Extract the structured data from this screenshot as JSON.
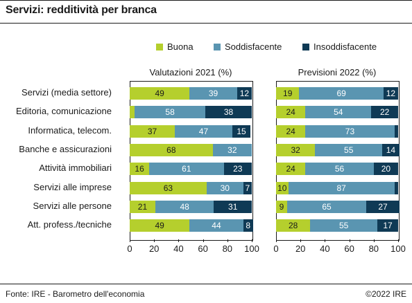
{
  "title": "Servizi: redditività per branca",
  "footer": {
    "source": "Fonte: IRE - Barometro dell'economia",
    "copyright": "©2022 IRE"
  },
  "colors": {
    "buona": "#b5cf2d",
    "soddisfacente": "#5a95b1",
    "insoddisfacente": "#0f3a55"
  },
  "chart_data": {
    "type": "bar",
    "orientation": "horizontal",
    "stacked": true,
    "title": "Servizi: redditività per branca",
    "legend": [
      "Buona",
      "Soddisfacente",
      "Insoddisfacente"
    ],
    "legend_position": "top",
    "categories": [
      "Servizi (media settore)",
      "Editoria, comunicazione",
      "Informatica, telecom.",
      "Banche e assicurazioni",
      "Attività immobiliari",
      "Servizi alle imprese",
      "Servizi alle persone",
      "Att. profess./tecniche"
    ],
    "xlim": [
      0,
      100
    ],
    "xticks": [
      "0",
      "20",
      "40",
      "60",
      "80",
      "100"
    ],
    "panels": [
      {
        "title": "Valutazioni 2021 (%)",
        "series": [
          {
            "name": "Buona",
            "values": [
              49,
              4,
              37,
              68,
              16,
              63,
              21,
              49
            ]
          },
          {
            "name": "Soddisfacente",
            "values": [
              39,
              58,
              47,
              32,
              61,
              30,
              48,
              44
            ]
          },
          {
            "name": "Insoddisfacente",
            "values": [
              12,
              38,
              15,
              0,
              23,
              7,
              31,
              8
            ]
          }
        ],
        "labels": [
          [
            "49",
            "39",
            "12"
          ],
          [
            "",
            "58",
            "38"
          ],
          [
            "37",
            "47",
            "15"
          ],
          [
            "68",
            "32",
            ""
          ],
          [
            "16",
            "61",
            "23"
          ],
          [
            "63",
            "30",
            "7"
          ],
          [
            "21",
            "48",
            "31"
          ],
          [
            "49",
            "44",
            "8"
          ]
        ]
      },
      {
        "title": "Previsioni 2022 (%)",
        "series": [
          {
            "name": "Buona",
            "values": [
              19,
              24,
              24,
              32,
              24,
              10,
              9,
              28
            ]
          },
          {
            "name": "Soddisfacente",
            "values": [
              69,
              54,
              73,
              55,
              56,
              87,
              65,
              55
            ]
          },
          {
            "name": "Insoddisfacente",
            "values": [
              12,
              22,
              3,
              14,
              20,
              3,
              27,
              17
            ]
          }
        ],
        "labels": [
          [
            "19",
            "69",
            "12"
          ],
          [
            "24",
            "54",
            "22"
          ],
          [
            "24",
            "73",
            ""
          ],
          [
            "32",
            "55",
            "14"
          ],
          [
            "24",
            "56",
            "20"
          ],
          [
            "10",
            "87",
            ""
          ],
          [
            "9",
            "65",
            "27"
          ],
          [
            "28",
            "55",
            "17"
          ]
        ]
      }
    ]
  }
}
